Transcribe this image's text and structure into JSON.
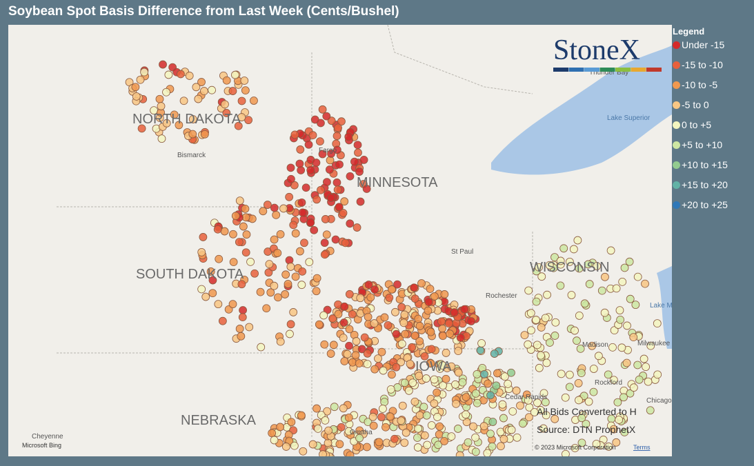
{
  "title": "Soybean Spot Basis Difference from Last Week (Cents/Bushel)",
  "legend": {
    "title": "Legend",
    "items": [
      {
        "label": "Under -15",
        "color": "#d42a2a"
      },
      {
        "label": "-15 to -10",
        "color": "#e8603c"
      },
      {
        "label": "-10 to -5",
        "color": "#f0984f"
      },
      {
        "label": "-5 to 0",
        "color": "#f8c684"
      },
      {
        "label": "0 to +5",
        "color": "#f3f5bf"
      },
      {
        "label": "+5 to +10",
        "color": "#cde6a2"
      },
      {
        "label": "+10 to +15",
        "color": "#93cb8f"
      },
      {
        "label": "+15 to +20",
        "color": "#62b2a6"
      },
      {
        "label": "+20 to +25",
        "color": "#2f78b8"
      }
    ]
  },
  "logo": "StoneX",
  "map": {
    "states": [
      "NORTH DAKOTA",
      "MINNESOTA",
      "SOUTH DAKOTA",
      "WISCONSIN",
      "NEBRASKA",
      "IOWA"
    ],
    "places": [
      "Bismarck",
      "Fargo",
      "St Paul",
      "Rochester",
      "Madison",
      "Milwaukee",
      "Rockford",
      "Cedar Rapids",
      "Omaha",
      "Cheyenne",
      "Chicago",
      "Thunder Bay",
      "Lake Superior",
      "Lake Michigan"
    ]
  },
  "notes": [
    "All Bids Converted to H",
    "Source: DTN ProphetX"
  ],
  "attribution": {
    "provider": "Microsoft Bing",
    "copyright": "© 2023 Microsoft Corporation",
    "terms": "Terms"
  }
}
